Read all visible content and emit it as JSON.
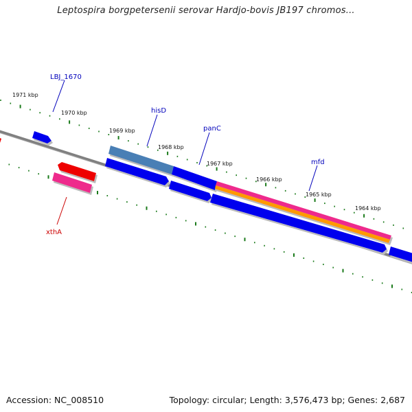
{
  "title": "Leptospira borgpetersenii serovar Hardjo-bovis JB197 chromos...",
  "footer": {
    "accession": "Accession: NC_008510",
    "stats": "Topology: circular; Length: 3,576,473 bp; Genes: 2,687"
  },
  "scale_labels": [
    "1971 kbp",
    "1970 kbp",
    "1969 kbp",
    "1968 kbp",
    "1967 kbp",
    "1966 kbp",
    "1965 kbp",
    "1964 kbp"
  ],
  "gene_labels": [
    {
      "name": "LBJ_1670",
      "color": "#0000bb"
    },
    {
      "name": "hisD",
      "color": "#0000bb"
    },
    {
      "name": "panC",
      "color": "#0000bb"
    },
    {
      "name": "mfd",
      "color": "#0000bb"
    },
    {
      "name": "xthA",
      "color": "#cc0000"
    }
  ],
  "colors": {
    "backbone": "#808080",
    "tick": "#1a7a1a",
    "gene_blue": "#0000ee",
    "gene_steel": "#4a7fb5",
    "gene_red": "#ee0000",
    "gene_pink": "#ee2a8c",
    "gene_orange": "#ff9900"
  }
}
